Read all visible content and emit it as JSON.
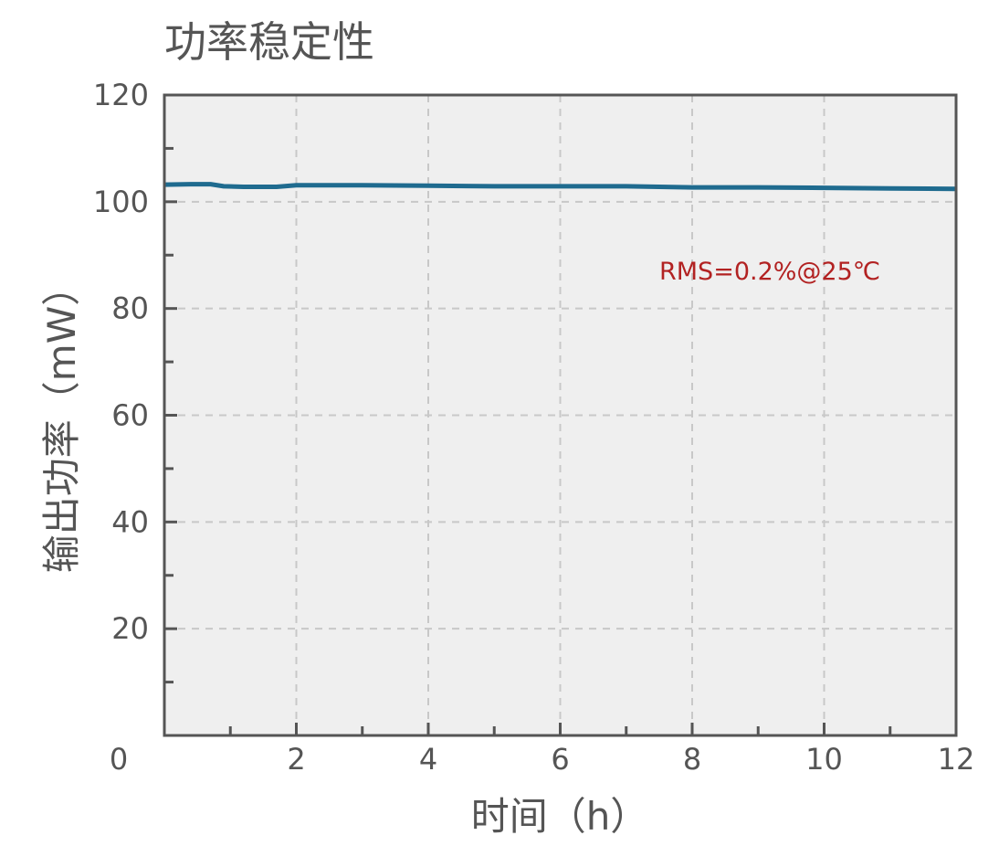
{
  "chart_data": {
    "type": "line",
    "title": "功率稳定性",
    "xlabel": "时间（h）",
    "ylabel": "输出功率（mW）",
    "xlim": [
      0,
      12
    ],
    "ylim": [
      0,
      120
    ],
    "x_ticks": [
      0,
      2,
      4,
      6,
      8,
      10,
      12
    ],
    "x_tick_labels": [
      "0",
      "2",
      "4",
      "6",
      "8",
      "10",
      "12"
    ],
    "y_ticks": [
      20,
      40,
      60,
      80,
      100,
      120
    ],
    "y_tick_labels": [
      "20",
      "40",
      "60",
      "80",
      "100",
      "120"
    ],
    "grid": true,
    "annotation": "RMS=0.2%@25℃",
    "series": [
      {
        "color": "#1f6b8f",
        "x": [
          0,
          0.4,
          0.7,
          0.9,
          1.2,
          1.7,
          2,
          3,
          4,
          5,
          6,
          7,
          8,
          9,
          10,
          11,
          12
        ],
        "y": [
          103.2,
          103.3,
          103.3,
          102.9,
          102.8,
          102.8,
          103.1,
          103.1,
          103.0,
          102.9,
          102.9,
          102.9,
          102.7,
          102.7,
          102.6,
          102.5,
          102.4
        ]
      }
    ],
    "colors": {
      "background": "#efefef",
      "axis": "#555555",
      "grid": "#c8c8c8",
      "annotation": "#b22222"
    }
  }
}
